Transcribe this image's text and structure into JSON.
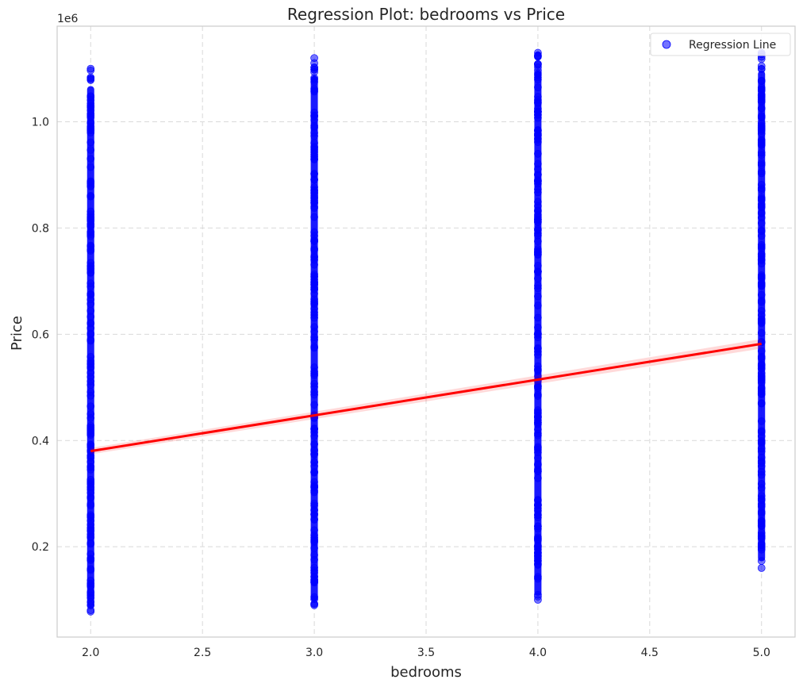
{
  "chart_data": {
    "type": "scatter",
    "title": "Regression Plot: bedrooms vs Price",
    "xlabel": "bedrooms",
    "ylabel": "Price",
    "y_offset_label": "1e6",
    "xlim": [
      1.85,
      5.15
    ],
    "ylim": [
      30000,
      1180000
    ],
    "x_ticks": [
      2.0,
      2.5,
      3.0,
      3.5,
      4.0,
      4.5,
      5.0
    ],
    "x_tick_labels": [
      "2.0",
      "2.5",
      "3.0",
      "3.5",
      "4.0",
      "4.5",
      "5.0"
    ],
    "y_ticks": [
      200000,
      400000,
      600000,
      800000,
      1000000
    ],
    "y_tick_labels": [
      "0.2",
      "0.4",
      "0.6",
      "0.8",
      "1.0"
    ],
    "grid": true,
    "legend": {
      "position": "top-right",
      "entries": [
        "Regression Line"
      ]
    },
    "series": [
      {
        "name": "Regression Line",
        "kind": "scatter",
        "color": "#0000ff",
        "groups": [
          {
            "x": 2,
            "min": 78000,
            "max": 1100000
          },
          {
            "x": 3,
            "min": 90000,
            "max": 1120000
          },
          {
            "x": 4,
            "min": 100000,
            "max": 1130000
          },
          {
            "x": 5,
            "min": 160000,
            "max": 1130000
          }
        ]
      },
      {
        "kind": "regression",
        "color": "#ff0000",
        "x": [
          2,
          5
        ],
        "y": [
          380000,
          582000
        ]
      }
    ]
  }
}
